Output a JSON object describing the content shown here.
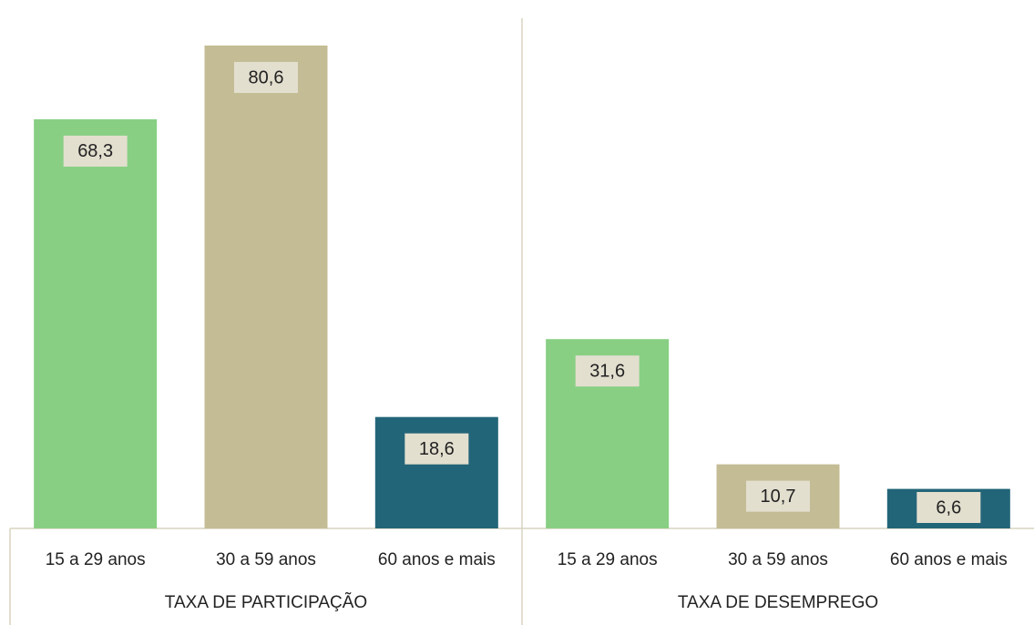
{
  "chart_data": {
    "type": "bar",
    "categories": [
      "TAXA DE PARTICIPAÇÃO",
      "TAXA DE DESEMPREGO"
    ],
    "series": [
      {
        "name": "15 a 29 anos",
        "color": "#88cf83",
        "values": [
          68.3,
          31.6
        ],
        "value_labels": [
          "68,3",
          "31,6"
        ]
      },
      {
        "name": "30 a 59 anos",
        "color": "#c4bc94",
        "values": [
          80.6,
          10.7
        ],
        "value_labels": [
          "80,6",
          "10,7"
        ]
      },
      {
        "name": "60 anos e mais",
        "color": "#236578",
        "values": [
          18.6,
          6.6
        ],
        "value_labels": [
          "18,6",
          "6,6"
        ]
      }
    ]
  }
}
